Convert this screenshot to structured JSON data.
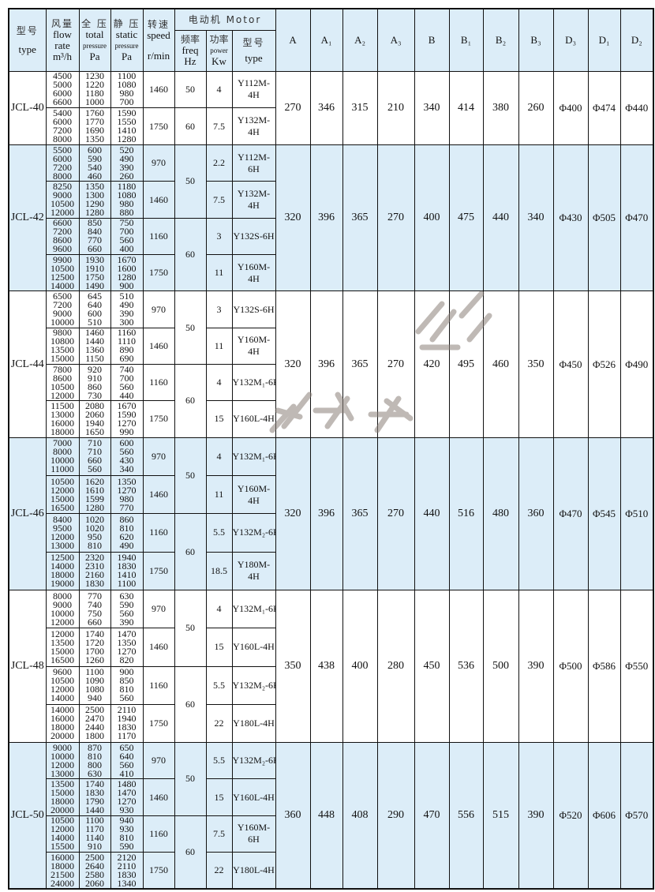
{
  "header": {
    "type_zh": "型号",
    "type_en": "type",
    "flow_zh": "风量",
    "flow_en1": "flow",
    "flow_en2": "rate",
    "flow_unit": "m³/h",
    "total_zh": "全 压",
    "total_en1": "total",
    "total_en2": "pressure",
    "total_unit": "Pa",
    "static_zh": "静 压",
    "static_en1": "static",
    "static_en2": "pressure",
    "static_unit": "Pa",
    "speed_zh": "转速",
    "speed_en": "speed",
    "speed_unit": "r/min",
    "motor": "电动机 Motor",
    "freq_zh": "频率",
    "freq_en": "freq",
    "freq_unit": "Hz",
    "power_zh": "功率",
    "power_en": "power",
    "power_unit": "Kw",
    "mtype_zh": "型号",
    "mtype_en": "type",
    "dims": [
      "A",
      "A₁",
      "A₂",
      "A₃",
      "B",
      "B₁",
      "B₂",
      "B₃",
      "D₃",
      "D₁",
      "D₂"
    ]
  },
  "colors": {
    "header_bg": "#dcedf8",
    "alt_row_bg": "#dcedf8",
    "border": "#111111",
    "watermark": "#8a8078"
  },
  "watermark": "纳特公",
  "models": [
    {
      "name": "JCL-40",
      "shaded": false,
      "dims": [
        "270",
        "346",
        "315",
        "210",
        "340",
        "414",
        "380",
        "260",
        "Φ400",
        "Φ474",
        "Φ440"
      ],
      "groups": [
        {
          "flow": [
            "4500",
            "5000",
            "6000",
            "6600"
          ],
          "total": [
            "1230",
            "1220",
            "1180",
            "1000"
          ],
          "static": [
            "1100",
            "1080",
            "980",
            "700"
          ],
          "speed": "1460",
          "freq": "50",
          "power": "4",
          "motor": "Y112M-4H"
        },
        {
          "flow": [
            "5400",
            "6000",
            "7200",
            "8000"
          ],
          "total": [
            "1760",
            "1770",
            "1690",
            "1350"
          ],
          "static": [
            "1590",
            "1550",
            "1410",
            "1280"
          ],
          "speed": "1750",
          "freq": "60",
          "power": "7.5",
          "motor": "Y132M-4H"
        }
      ]
    },
    {
      "name": "JCL-42",
      "shaded": true,
      "dims": [
        "320",
        "396",
        "365",
        "270",
        "400",
        "475",
        "440",
        "340",
        "Φ430",
        "Φ505",
        "Φ470"
      ],
      "groups": [
        {
          "flow": [
            "5500",
            "6000",
            "7200",
            "8000"
          ],
          "total": [
            "600",
            "590",
            "540",
            "460"
          ],
          "static": [
            "520",
            "490",
            "390",
            "260"
          ],
          "speed": "970",
          "freq": "50",
          "power": "2.2",
          "motor": "Y112M-6H"
        },
        {
          "flow": [
            "8250",
            "9000",
            "10500",
            "12000"
          ],
          "total": [
            "1350",
            "1300",
            "1290",
            "1280"
          ],
          "static": [
            "1180",
            "1080",
            "980",
            "880"
          ],
          "speed": "1460",
          "freq": "50",
          "power": "7.5",
          "motor": "Y132M-4H"
        },
        {
          "flow": [
            "6600",
            "7200",
            "8600",
            "9600"
          ],
          "total": [
            "850",
            "840",
            "770",
            "660"
          ],
          "static": [
            "750",
            "700",
            "560",
            "400"
          ],
          "speed": "1160",
          "freq": "60",
          "power": "3",
          "motor": "Y132S-6H"
        },
        {
          "flow": [
            "9900",
            "10500",
            "12500",
            "14000"
          ],
          "total": [
            "1930",
            "1910",
            "1750",
            "1490"
          ],
          "static": [
            "1670",
            "1600",
            "1280",
            "900"
          ],
          "speed": "1750",
          "freq": "60",
          "power": "11",
          "motor": "Y160M-4H"
        }
      ]
    },
    {
      "name": "JCL-44",
      "shaded": false,
      "dims": [
        "320",
        "396",
        "365",
        "270",
        "420",
        "495",
        "460",
        "350",
        "Φ450",
        "Φ526",
        "Φ490"
      ],
      "groups": [
        {
          "flow": [
            "6500",
            "7200",
            "9000",
            "10000"
          ],
          "total": [
            "645",
            "640",
            "600",
            "510"
          ],
          "static": [
            "510",
            "490",
            "390",
            "300"
          ],
          "speed": "970",
          "freq": "50",
          "power": "3",
          "motor": "Y132S-6H"
        },
        {
          "flow": [
            "9800",
            "10800",
            "13500",
            "15000"
          ],
          "total": [
            "1460",
            "1440",
            "1360",
            "1150"
          ],
          "static": [
            "1160",
            "1110",
            "890",
            "690"
          ],
          "speed": "1460",
          "freq": "50",
          "power": "11",
          "motor": "Y160M-4H"
        },
        {
          "flow": [
            "7800",
            "8600",
            "10500",
            "12000"
          ],
          "total": [
            "920",
            "910",
            "860",
            "730"
          ],
          "static": [
            "740",
            "700",
            "560",
            "440"
          ],
          "speed": "1160",
          "freq": "60",
          "power": "4",
          "motor": "Y132M₁-6H"
        },
        {
          "flow": [
            "11500",
            "13000",
            "16000",
            "18000"
          ],
          "total": [
            "2080",
            "2060",
            "1940",
            "1650"
          ],
          "static": [
            "1670",
            "1590",
            "1270",
            "990"
          ],
          "speed": "1750",
          "freq": "60",
          "power": "15",
          "motor": "Y160L-4H"
        }
      ]
    },
    {
      "name": "JCL-46",
      "shaded": true,
      "dims": [
        "320",
        "396",
        "365",
        "270",
        "440",
        "516",
        "480",
        "360",
        "Φ470",
        "Φ545",
        "Φ510"
      ],
      "groups": [
        {
          "flow": [
            "7000",
            "8000",
            "10000",
            "11000"
          ],
          "total": [
            "710",
            "710",
            "660",
            "560"
          ],
          "static": [
            "600",
            "560",
            "430",
            "340"
          ],
          "speed": "970",
          "freq": "50",
          "power": "4",
          "motor": "Y132M₁-6H"
        },
        {
          "flow": [
            "10500",
            "12000",
            "15000",
            "16500"
          ],
          "total": [
            "1620",
            "1610",
            "1599",
            "1280"
          ],
          "static": [
            "1350",
            "1270",
            "980",
            "770"
          ],
          "speed": "1460",
          "freq": "50",
          "power": "11",
          "motor": "Y160M-4H"
        },
        {
          "flow": [
            "8400",
            "9500",
            "12000",
            "13000"
          ],
          "total": [
            "1020",
            "1020",
            "950",
            "810"
          ],
          "static": [
            "860",
            "810",
            "620",
            "490"
          ],
          "speed": "1160",
          "freq": "60",
          "power": "5.5",
          "motor": "Y132M₂-6H"
        },
        {
          "flow": [
            "12500",
            "14000",
            "18000",
            "19000"
          ],
          "total": [
            "2320",
            "2310",
            "2160",
            "1830"
          ],
          "static": [
            "1940",
            "1830",
            "1410",
            "1100"
          ],
          "speed": "1750",
          "freq": "60",
          "power": "18.5",
          "motor": "Y180M-4H"
        }
      ]
    },
    {
      "name": "JCL-48",
      "shaded": false,
      "dims": [
        "350",
        "438",
        "400",
        "280",
        "450",
        "536",
        "500",
        "390",
        "Φ500",
        "Φ586",
        "Φ550"
      ],
      "groups": [
        {
          "flow": [
            "8000",
            "9000",
            "10000",
            "12000"
          ],
          "total": [
            "770",
            "740",
            "750",
            "660"
          ],
          "static": [
            "630",
            "590",
            "560",
            "390"
          ],
          "speed": "970",
          "freq": "50",
          "power": "4",
          "motor": "Y132M₁-6H"
        },
        {
          "flow": [
            "12000",
            "13500",
            "15000",
            "16500"
          ],
          "total": [
            "1740",
            "1720",
            "1700",
            "1260"
          ],
          "static": [
            "1470",
            "1350",
            "1270",
            "820"
          ],
          "speed": "1460",
          "freq": "50",
          "power": "15",
          "motor": "Y160L-4H"
        },
        {
          "flow": [
            "9600",
            "10500",
            "12000",
            "14000"
          ],
          "total": [
            "1100",
            "1090",
            "1080",
            "940"
          ],
          "static": [
            "900",
            "850",
            "810",
            "560"
          ],
          "speed": "1160",
          "freq": "60",
          "power": "5.5",
          "motor": "Y132M₂-6H"
        },
        {
          "flow": [
            "14000",
            "16000",
            "18000",
            "20000"
          ],
          "total": [
            "2500",
            "2470",
            "2440",
            "1800"
          ],
          "static": [
            "2110",
            "1940",
            "1830",
            "1170"
          ],
          "speed": "1750",
          "freq": "60",
          "power": "22",
          "motor": "Y180L-4H"
        }
      ]
    },
    {
      "name": "JCL-50",
      "shaded": true,
      "dims": [
        "360",
        "448",
        "408",
        "290",
        "470",
        "556",
        "515",
        "390",
        "Φ520",
        "Φ606",
        "Φ570"
      ],
      "groups": [
        {
          "flow": [
            "9000",
            "10000",
            "12000",
            "13000"
          ],
          "total": [
            "870",
            "810",
            "800",
            "630"
          ],
          "static": [
            "650",
            "640",
            "560",
            "410"
          ],
          "speed": "970",
          "freq": "50",
          "power": "5.5",
          "motor": "Y132M₂-6H"
        },
        {
          "flow": [
            "13500",
            "15000",
            "18000",
            "20000"
          ],
          "total": [
            "1740",
            "1830",
            "1790",
            "1440"
          ],
          "static": [
            "1480",
            "1470",
            "1270",
            "930"
          ],
          "speed": "1460",
          "freq": "50",
          "power": "15",
          "motor": "Y160L-4H"
        },
        {
          "flow": [
            "10500",
            "12000",
            "14000",
            "15500"
          ],
          "total": [
            "1100",
            "1170",
            "1140",
            "910"
          ],
          "static": [
            "940",
            "930",
            "810",
            "590"
          ],
          "speed": "1160",
          "freq": "60",
          "power": "7.5",
          "motor": "Y160M-6H"
        },
        {
          "flow": [
            "16000",
            "18000",
            "21500",
            "24000"
          ],
          "total": [
            "2500",
            "2640",
            "2580",
            "2060"
          ],
          "static": [
            "2120",
            "2110",
            "1830",
            "1340"
          ],
          "speed": "1750",
          "freq": "60",
          "power": "22",
          "motor": "Y180L-4H"
        }
      ]
    }
  ]
}
